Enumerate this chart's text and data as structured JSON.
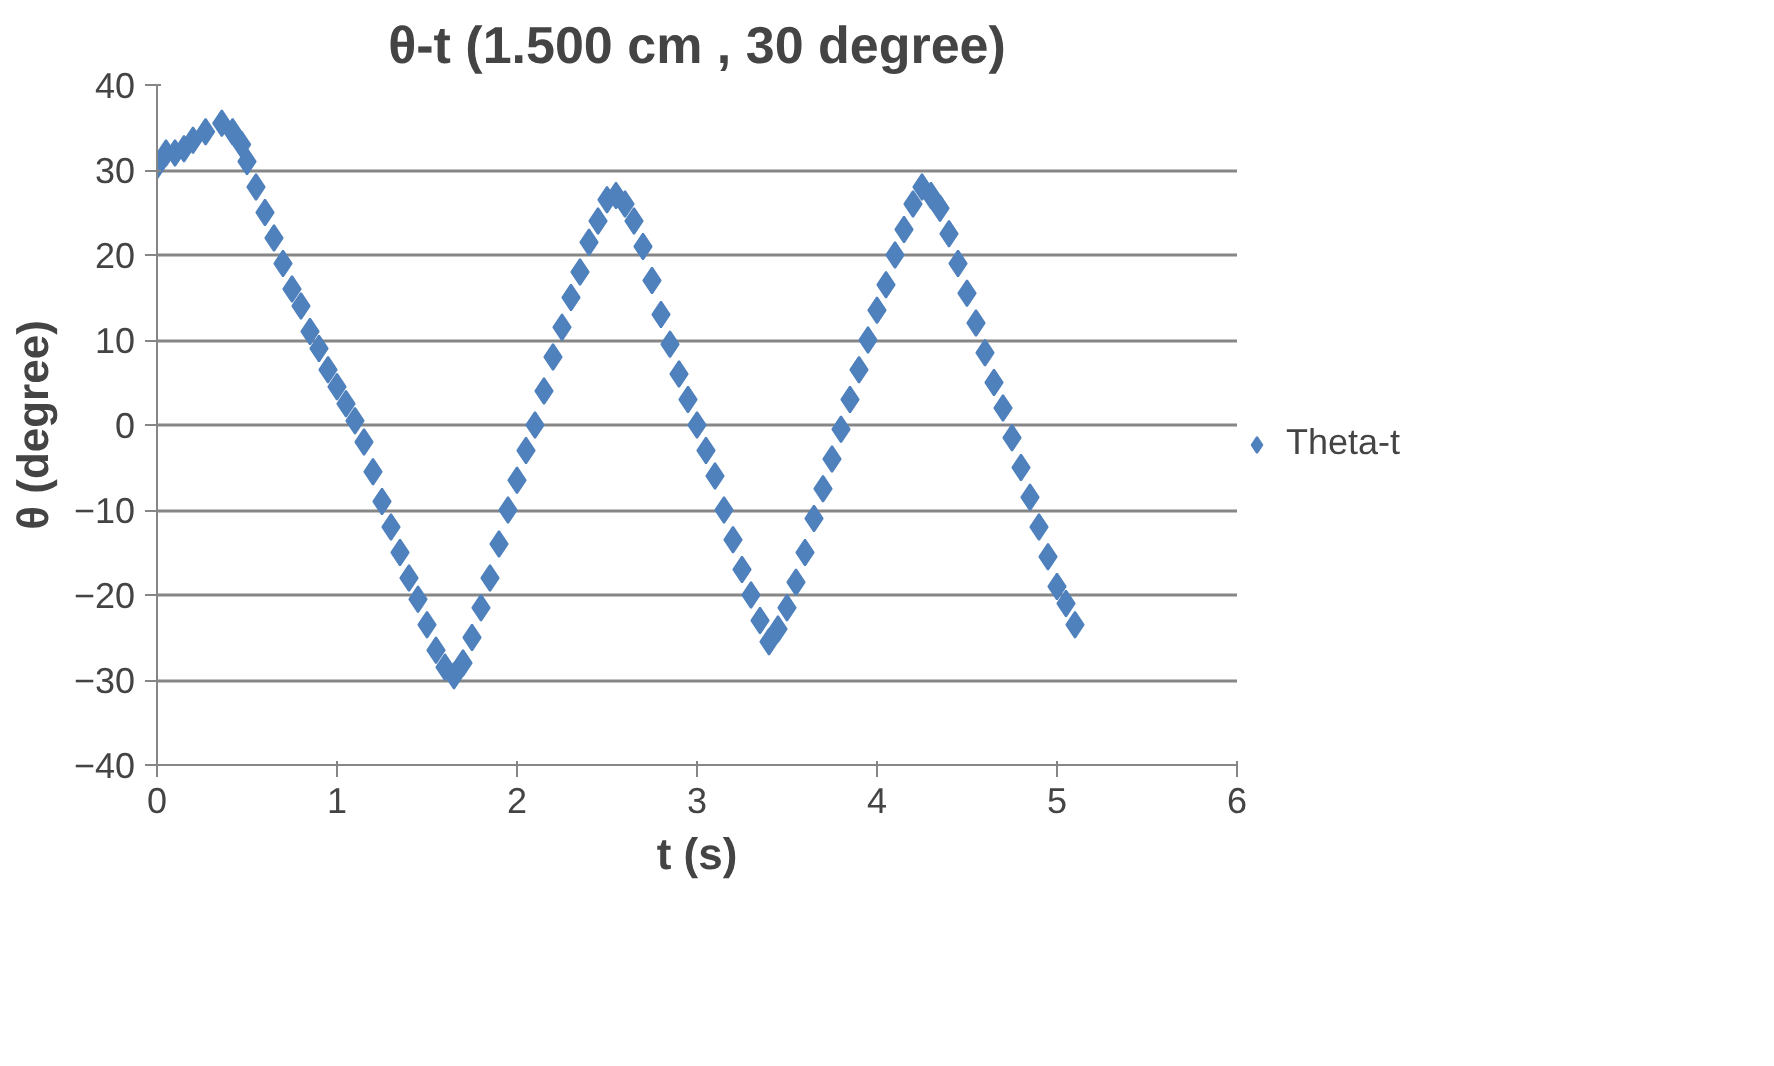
{
  "chart_data": {
    "type": "scatter",
    "title": "θ-t (1.500 cm , 30 degree)",
    "xlabel": "t (s)",
    "ylabel": "θ (degree)",
    "xlim": [
      0,
      6
    ],
    "xticks": [
      0,
      1,
      2,
      3,
      4,
      5,
      6
    ],
    "ylim": [
      -40,
      40
    ],
    "yticks": [
      -40,
      -30,
      -20,
      -10,
      0,
      10,
      20,
      30,
      40
    ],
    "grid": "y",
    "legend": "right",
    "marker": "diamond",
    "series": [
      {
        "name": "Theta-t",
        "color": "#4f81bd",
        "x": [
          0,
          0.05,
          0.1,
          0.15,
          0.2,
          0.27,
          0.36,
          0.42,
          0.47,
          0.5,
          0.55,
          0.6,
          0.65,
          0.7,
          0.75,
          0.8,
          0.85,
          0.9,
          0.95,
          1.0,
          1.05,
          1.1,
          1.15,
          1.2,
          1.25,
          1.3,
          1.35,
          1.4,
          1.45,
          1.5,
          1.55,
          1.6,
          1.65,
          1.7,
          1.75,
          1.8,
          1.85,
          1.9,
          1.95,
          2.0,
          2.05,
          2.1,
          2.15,
          2.2,
          2.25,
          2.3,
          2.35,
          2.4,
          2.45,
          2.5,
          2.55,
          2.6,
          2.65,
          2.7,
          2.75,
          2.8,
          2.85,
          2.9,
          2.95,
          3.0,
          3.05,
          3.1,
          3.15,
          3.2,
          3.25,
          3.3,
          3.35,
          3.4,
          3.45,
          3.5,
          3.55,
          3.6,
          3.65,
          3.7,
          3.75,
          3.8,
          3.85,
          3.9,
          3.95,
          4.0,
          4.05,
          4.1,
          4.15,
          4.2,
          4.25,
          4.3,
          4.35,
          4.4,
          4.45,
          4.5,
          4.55,
          4.6,
          4.65,
          4.7,
          4.75,
          4.8,
          4.85,
          4.9,
          4.95,
          5.0,
          5.05,
          5.1
        ],
        "values": [
          30.5,
          32,
          32,
          32.5,
          33.5,
          34.5,
          35.5,
          34.5,
          33,
          31,
          28,
          25,
          22,
          19,
          16,
          14,
          11,
          9,
          6.5,
          4.5,
          2.5,
          0.5,
          -2,
          -5.5,
          -9,
          -12,
          -15,
          -18,
          -20.5,
          -23.5,
          -26.5,
          -28.5,
          -29.5,
          -28,
          -25,
          -21.5,
          -18,
          -14,
          -10,
          -6.5,
          -3,
          0,
          4,
          8,
          11.5,
          15,
          18,
          21.5,
          24,
          26.5,
          27,
          26,
          24,
          21,
          17,
          13,
          9.5,
          6,
          3,
          0,
          -3,
          -6,
          -10,
          -13.5,
          -17,
          -20,
          -23,
          -25.5,
          -24,
          -21.5,
          -18.5,
          -15,
          -11,
          -7.5,
          -4,
          -0.5,
          3,
          6.5,
          10,
          13.5,
          16.5,
          20,
          23,
          26,
          28,
          27,
          25.5,
          22.5,
          19,
          15.5,
          12,
          8.5,
          5,
          2,
          -1.5,
          -5,
          -8.5,
          -12,
          -15.5,
          -19,
          -21,
          -23.5
        ]
      }
    ]
  }
}
